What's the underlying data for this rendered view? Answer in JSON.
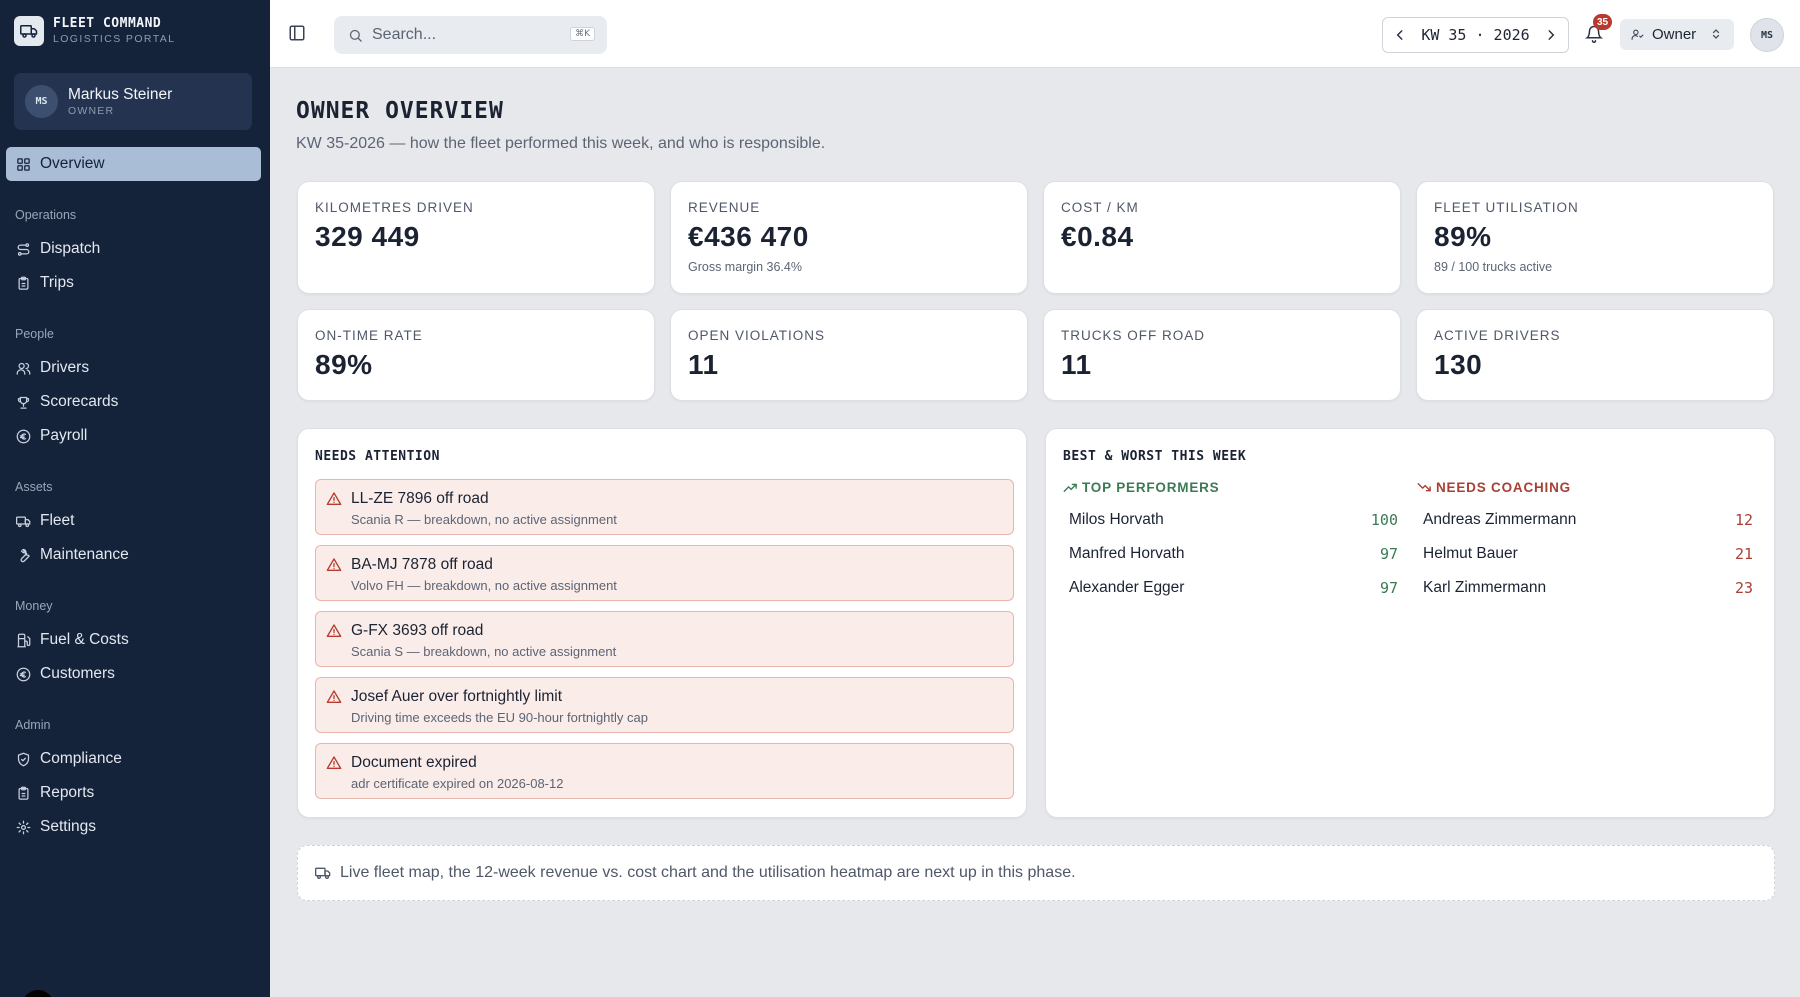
{
  "brand": {
    "title": "FLEET COMMAND",
    "subtitle": "LOGISTICS PORTAL",
    "icon": "truck-icon"
  },
  "user": {
    "initials": "MS",
    "name": "Markus Steiner",
    "role": "OWNER"
  },
  "nav": {
    "overview": "Overview",
    "sections": {
      "operations": "Operations",
      "people": "People",
      "assets": "Assets",
      "money": "Money",
      "admin": "Admin"
    },
    "items": {
      "dispatch": "Dispatch",
      "trips": "Trips",
      "drivers": "Drivers",
      "scorecards": "Scorecards",
      "payroll": "Payroll",
      "fleet": "Fleet",
      "maintenance": "Maintenance",
      "fuel_costs": "Fuel & Costs",
      "customers": "Customers",
      "compliance": "Compliance",
      "reports": "Reports",
      "settings": "Settings"
    }
  },
  "topbar": {
    "search_placeholder": "Search...",
    "search_shortcut": "⌘K",
    "week_label": "KW 35 · 2026",
    "notifications_count": "35",
    "role_label": "Owner",
    "avatar_initials": "MS"
  },
  "page": {
    "title": "OWNER OVERVIEW",
    "subtitle": "KW 35-2026 — how the fleet performed this week, and who is responsible."
  },
  "kpis": [
    {
      "label": "KILOMETRES DRIVEN",
      "value": "329 449",
      "note": ""
    },
    {
      "label": "REVENUE",
      "value": "€436 470",
      "note": "Gross margin 36.4%"
    },
    {
      "label": "COST / KM",
      "value": "€0.84",
      "note": ""
    },
    {
      "label": "FLEET UTILISATION",
      "value": "89%",
      "note": "89 / 100 trucks active"
    },
    {
      "label": "ON-TIME RATE",
      "value": "89%",
      "note": ""
    },
    {
      "label": "OPEN VIOLATIONS",
      "value": "11",
      "note": ""
    },
    {
      "label": "TRUCKS OFF ROAD",
      "value": "11",
      "note": ""
    },
    {
      "label": "ACTIVE DRIVERS",
      "value": "130",
      "note": ""
    }
  ],
  "attention": {
    "title": "NEEDS ATTENTION",
    "items": [
      {
        "title": "LL-ZE 7896 off road",
        "detail": "Scania R — breakdown, no active assignment"
      },
      {
        "title": "BA-MJ 7878 off road",
        "detail": "Volvo FH — breakdown, no active assignment"
      },
      {
        "title": "G-FX 3693 off road",
        "detail": "Scania S — breakdown, no active assignment"
      },
      {
        "title": "Josef Auer over fortnightly limit",
        "detail": "Driving time exceeds the EU 90-hour fortnightly cap"
      },
      {
        "title": "Document expired",
        "detail": "adr certificate expired on 2026-08-12"
      }
    ]
  },
  "best_worst": {
    "title": "BEST & WORST THIS WEEK",
    "top_label": "TOP PERFORMERS",
    "coach_label": "NEEDS COACHING",
    "top": [
      {
        "name": "Milos Horvath",
        "score": "100"
      },
      {
        "name": "Manfred Horvath",
        "score": "97"
      },
      {
        "name": "Alexander Egger",
        "score": "97"
      }
    ],
    "coaching": [
      {
        "name": "Andreas Zimmermann",
        "score": "12"
      },
      {
        "name": "Helmut Bauer",
        "score": "21"
      },
      {
        "name": "Karl Zimmermann",
        "score": "23"
      }
    ]
  },
  "footer_note": "Live fleet map, the 12-week revenue vs. cost chart and the utilisation heatmap are next up in this phase.",
  "colors": {
    "sidebar": "#14223a",
    "active_nav": "#a9bdd6",
    "alert_bg": "#faece8",
    "alert_border": "#e8b6ac",
    "danger": "#b83a2e",
    "good": "#3c7a54"
  }
}
